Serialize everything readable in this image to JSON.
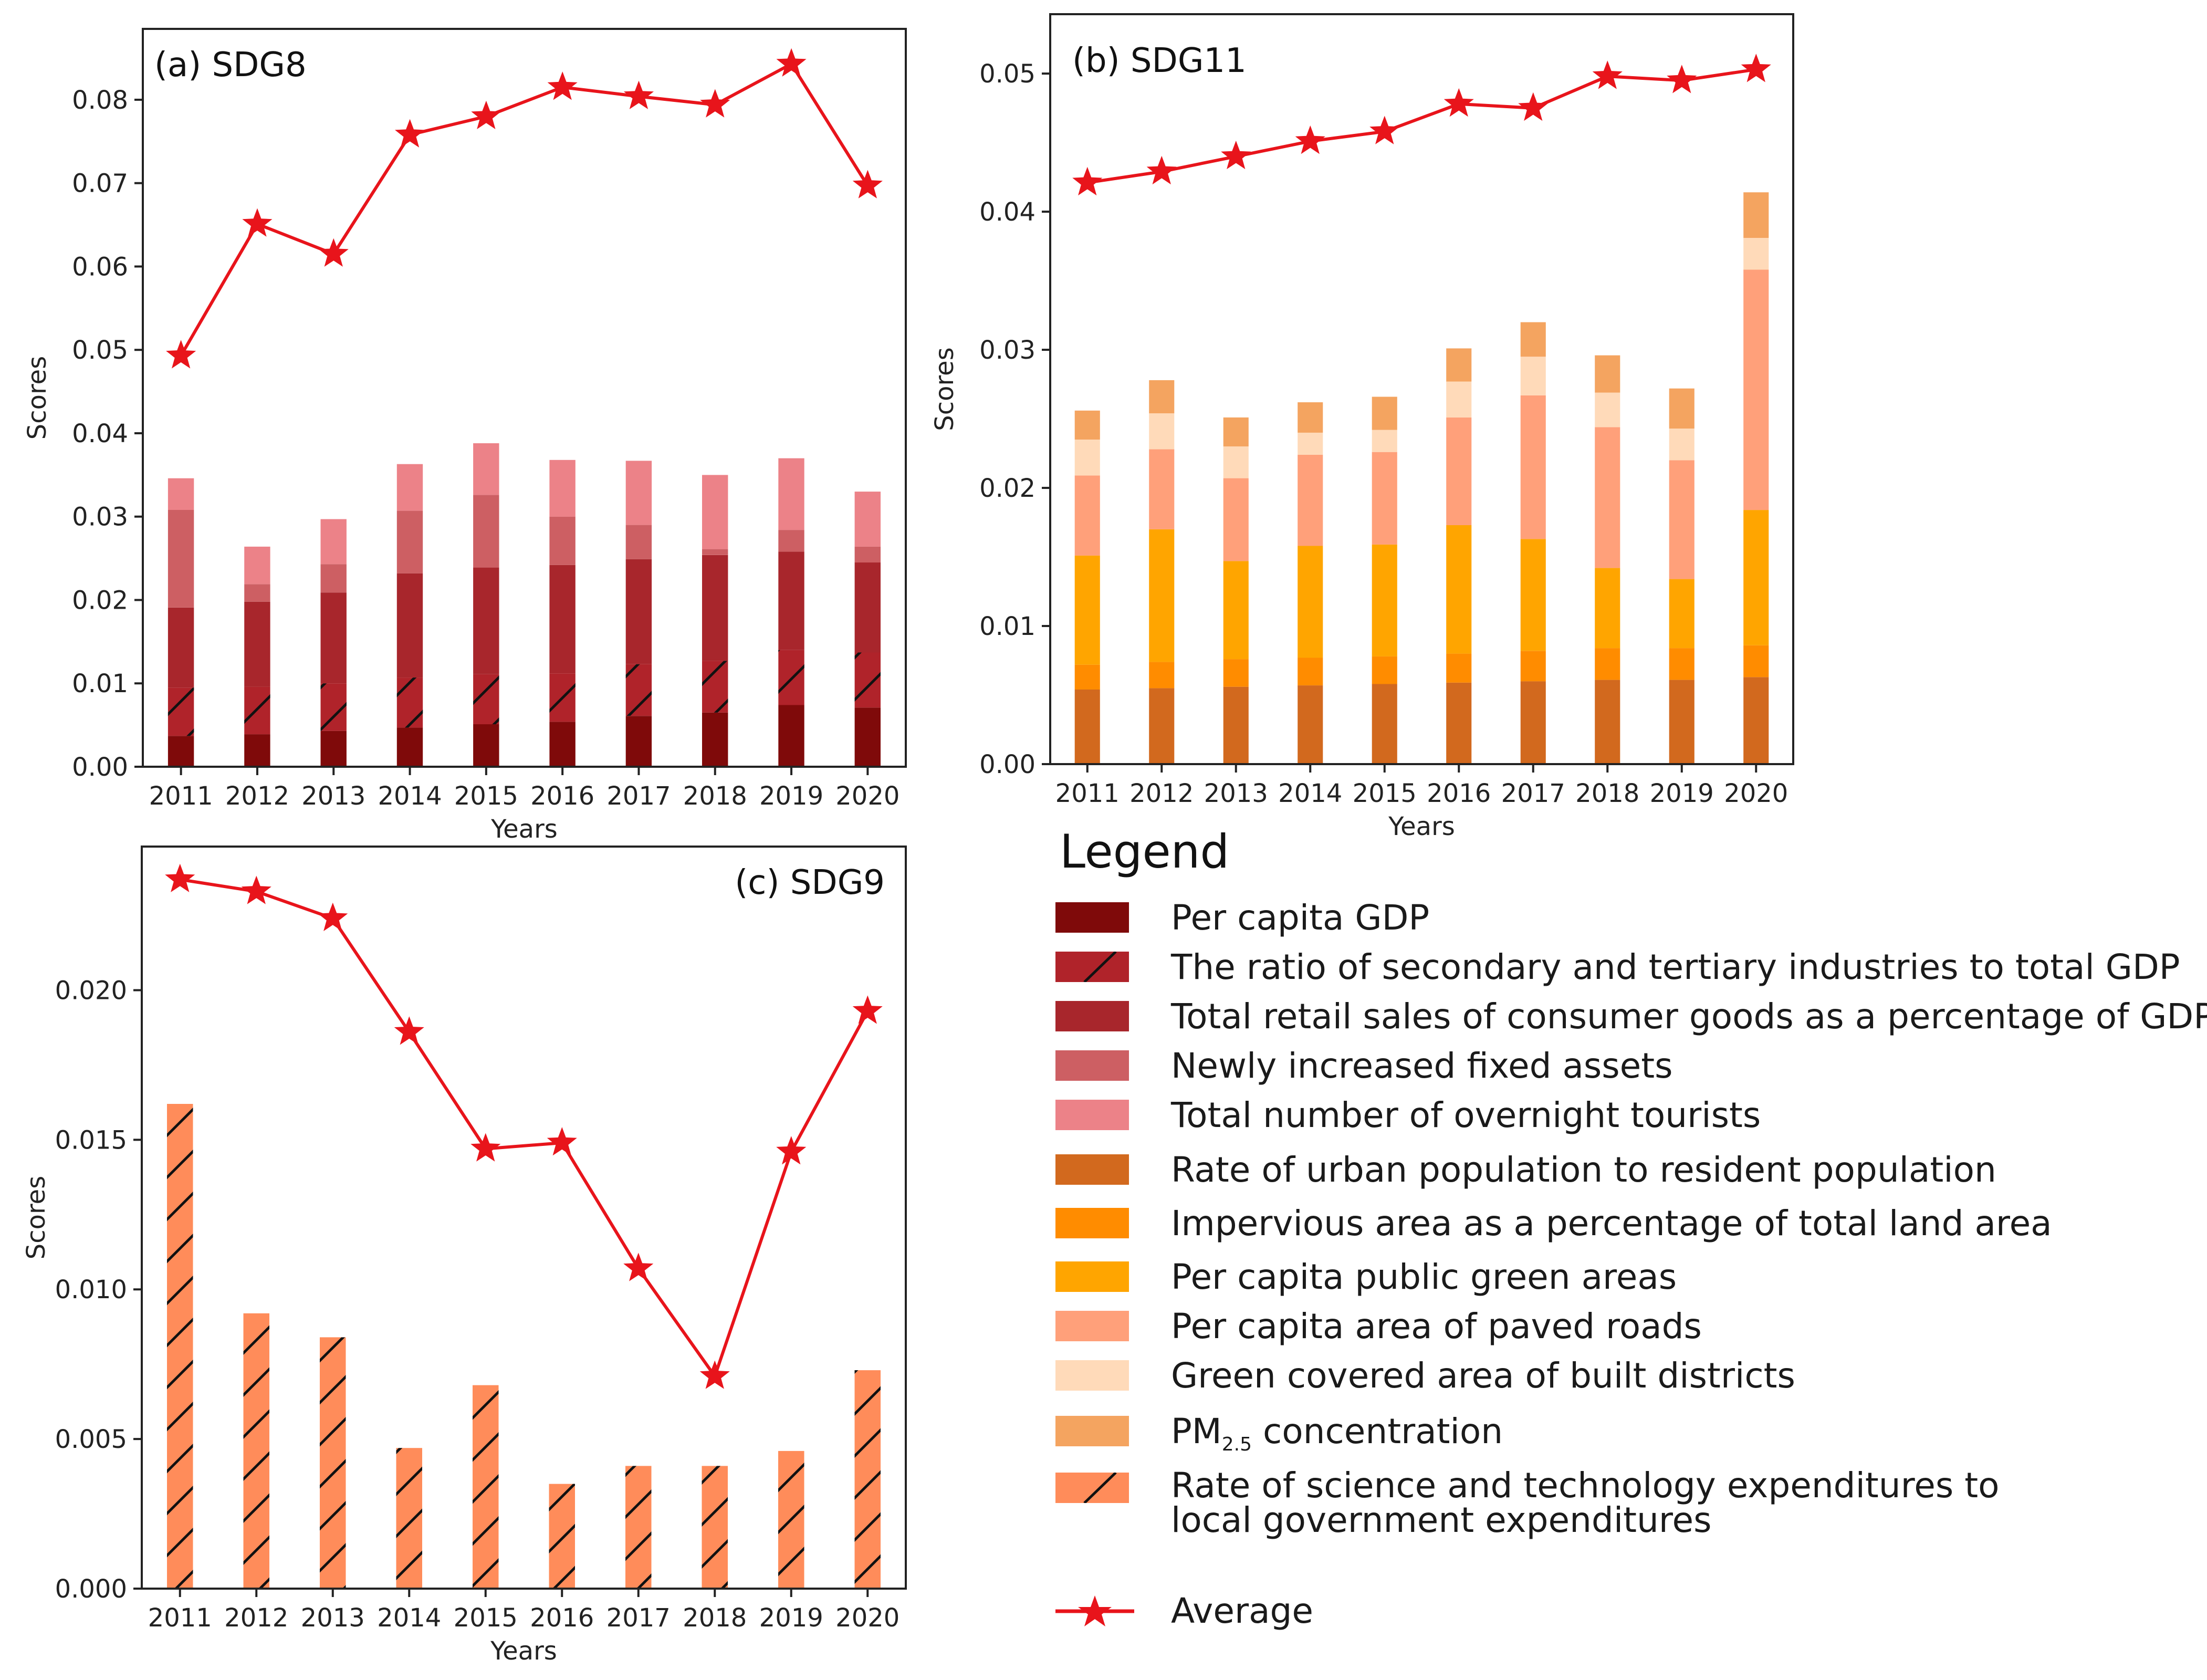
{
  "colors": {
    "average_line": "#e8141b",
    "axis": "#222222"
  },
  "legend": {
    "title": "Legend",
    "items": [
      {
        "label": "Per capita GDP",
        "color": "#7f0a0a",
        "hatch": false
      },
      {
        "label": "The ratio of secondary and tertiary industries to total GDP",
        "color": "#b0232a",
        "hatch": true
      },
      {
        "label": "Total retail sales of consumer goods as a percentage of GDP",
        "color": "#a8262c",
        "hatch": false
      },
      {
        "label": "Newly increased fixed assets",
        "color": "#cd5f63",
        "hatch": false
      },
      {
        "label": "Total number of overnight tourists",
        "color": "#ec8288",
        "hatch": false
      },
      {
        "label": "Rate of urban population to resident population",
        "color": "#d2691e",
        "hatch": false
      },
      {
        "label": "Impervious area as a percentage of total land area",
        "color": "#ff8c00",
        "hatch": false
      },
      {
        "label": "Per capita public green areas",
        "color": "#ffa500",
        "hatch": false
      },
      {
        "label": "Per capita area of paved roads",
        "color": "#ffa07a",
        "hatch": false
      },
      {
        "label": "Green covered area of built districts",
        "color": "#ffdab9",
        "hatch": false
      },
      {
        "label": "PM",
        "label_sub": "2.5",
        "label_tail": " concentration",
        "color": "#f4a460",
        "hatch": false
      },
      {
        "label": "Rate of science and technology expenditures to",
        "label2": "local government expenditures",
        "color": "#ff8c5a",
        "hatch": true
      },
      {
        "label": "Average",
        "color": "#e8141b",
        "line_marker": true
      }
    ]
  },
  "chart_data": [
    {
      "id": "sdg8",
      "type": "bar",
      "stacked": true,
      "title": "(a) SDG8",
      "xlabel": "Years",
      "ylabel": "Scores",
      "categories": [
        "2011",
        "2012",
        "2013",
        "2014",
        "2015",
        "2016",
        "2017",
        "2018",
        "2019",
        "2020"
      ],
      "ylim": [
        0,
        0.0885
      ],
      "yticks": [
        0.0,
        0.01,
        0.02,
        0.03,
        0.04,
        0.05,
        0.06,
        0.07,
        0.08
      ],
      "ytick_labels": [
        "0.00",
        "0.01",
        "0.02",
        "0.03",
        "0.04",
        "0.05",
        "0.06",
        "0.07",
        "0.08"
      ],
      "series": [
        {
          "name": "Per capita GDP",
          "color": "#7f0a0a",
          "hatch": false,
          "values": [
            0.0037,
            0.0039,
            0.0043,
            0.0047,
            0.0051,
            0.0054,
            0.0061,
            0.0065,
            0.0074,
            0.0071
          ]
        },
        {
          "name": "The ratio of secondary and tertiary industries to total GDP",
          "color": "#b0232a",
          "hatch": true,
          "values": [
            0.0058,
            0.0057,
            0.0057,
            0.006,
            0.006,
            0.0058,
            0.0062,
            0.0062,
            0.0066,
            0.0066
          ]
        },
        {
          "name": "Total retail sales of consumer goods as a percentage of GDP",
          "color": "#a8262c",
          "hatch": false,
          "values": [
            0.0096,
            0.0102,
            0.0109,
            0.0125,
            0.0128,
            0.013,
            0.0126,
            0.0127,
            0.0118,
            0.0108
          ]
        },
        {
          "name": "Newly increased fixed assets",
          "color": "#cd5f63",
          "hatch": false,
          "values": [
            0.0117,
            0.0021,
            0.0034,
            0.0075,
            0.0087,
            0.0058,
            0.0041,
            0.0007,
            0.0026,
            0.0019
          ]
        },
        {
          "name": "Total number of overnight tourists",
          "color": "#ec8288",
          "hatch": false,
          "values": [
            0.0038,
            0.0045,
            0.0054,
            0.0056,
            0.0062,
            0.0068,
            0.0077,
            0.0089,
            0.0086,
            0.0066
          ]
        }
      ],
      "average": [
        0.0493,
        0.0651,
        0.0615,
        0.0758,
        0.078,
        0.0815,
        0.0804,
        0.0794,
        0.0843,
        0.0697
      ]
    },
    {
      "id": "sdg11",
      "type": "bar",
      "stacked": true,
      "title": "(b) SDG11",
      "xlabel": "Years",
      "ylabel": "Scores",
      "categories": [
        "2011",
        "2012",
        "2013",
        "2014",
        "2015",
        "2016",
        "2017",
        "2018",
        "2019",
        "2020"
      ],
      "ylim": [
        0,
        0.0543
      ],
      "yticks": [
        0.0,
        0.01,
        0.02,
        0.03,
        0.04,
        0.05
      ],
      "ytick_labels": [
        "0.00",
        "0.01",
        "0.02",
        "0.03",
        "0.04",
        "0.05"
      ],
      "series": [
        {
          "name": "Rate of urban population to resident population",
          "color": "#d2691e",
          "hatch": false,
          "values": [
            0.0054,
            0.0055,
            0.0056,
            0.0057,
            0.0058,
            0.0059,
            0.006,
            0.0061,
            0.0061,
            0.0063
          ]
        },
        {
          "name": "Impervious area as a percentage of total land area",
          "color": "#ff8c00",
          "hatch": false,
          "values": [
            0.0018,
            0.0019,
            0.002,
            0.002,
            0.002,
            0.0021,
            0.0022,
            0.0023,
            0.0023,
            0.0023
          ]
        },
        {
          "name": "Per capita public green areas",
          "color": "#ffa500",
          "hatch": false,
          "values": [
            0.0079,
            0.0096,
            0.0071,
            0.0081,
            0.0081,
            0.0093,
            0.0081,
            0.0058,
            0.005,
            0.0098
          ]
        },
        {
          "name": "Per capita area of paved roads",
          "color": "#ffa07a",
          "hatch": false,
          "values": [
            0.0058,
            0.0058,
            0.006,
            0.0066,
            0.0067,
            0.0078,
            0.0104,
            0.0102,
            0.0086,
            0.0174
          ]
        },
        {
          "name": "Green covered area of built districts",
          "color": "#ffdab9",
          "hatch": false,
          "values": [
            0.0026,
            0.0026,
            0.0023,
            0.0016,
            0.0016,
            0.0026,
            0.0028,
            0.0025,
            0.0023,
            0.0023
          ]
        },
        {
          "name": "PM2.5 concentration",
          "color": "#f4a460",
          "hatch": false,
          "values": [
            0.0021,
            0.0024,
            0.0021,
            0.0022,
            0.0024,
            0.0024,
            0.0025,
            0.0027,
            0.0029,
            0.0033
          ]
        }
      ],
      "average": [
        0.0421,
        0.0429,
        0.044,
        0.0451,
        0.0458,
        0.0478,
        0.0475,
        0.0498,
        0.0495,
        0.0503
      ]
    },
    {
      "id": "sdg9",
      "type": "bar",
      "stacked": false,
      "title": "(c) SDG9",
      "xlabel": "Years",
      "ylabel": "Scores",
      "categories": [
        "2011",
        "2012",
        "2013",
        "2014",
        "2015",
        "2016",
        "2017",
        "2018",
        "2019",
        "2020"
      ],
      "ylim": [
        0,
        0.0248
      ],
      "yticks": [
        0.0,
        0.005,
        0.01,
        0.015,
        0.02
      ],
      "ytick_labels": [
        "0.000",
        "0.005",
        "0.010",
        "0.015",
        "0.020"
      ],
      "series": [
        {
          "name": "Rate of science and technology expenditures to local government expenditures",
          "color": "#ff8c5a",
          "hatch": true,
          "values": [
            0.0162,
            0.0092,
            0.0084,
            0.0047,
            0.0068,
            0.0035,
            0.0041,
            0.0041,
            0.0046,
            0.0073
          ]
        }
      ],
      "average": [
        0.0237,
        0.0233,
        0.0224,
        0.0186,
        0.0147,
        0.0149,
        0.0107,
        0.0071,
        0.0146,
        0.0193
      ]
    }
  ]
}
